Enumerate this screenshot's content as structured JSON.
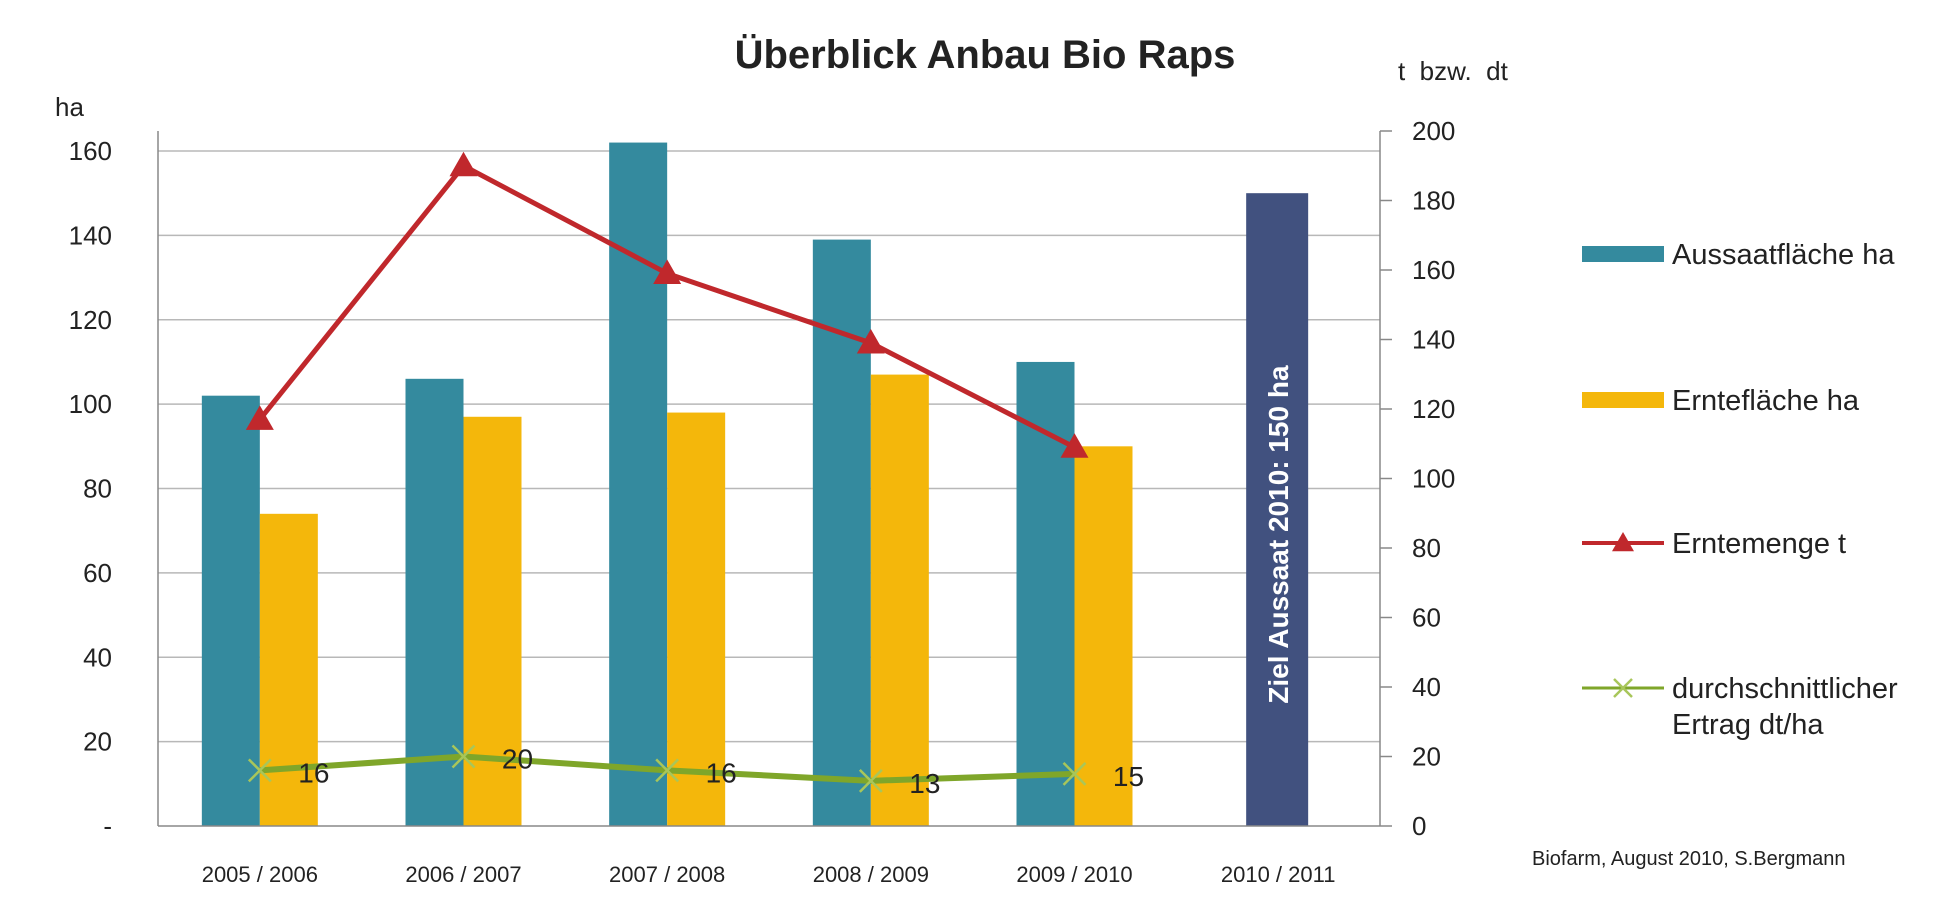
{
  "chart_data": {
    "type": "bar",
    "title": "Überblick Anbau Bio Raps",
    "left_axis": {
      "unit_label": "ha",
      "range": [
        0,
        160
      ],
      "ticks": [
        {
          "value": 0,
          "label": "-"
        },
        {
          "value": 20,
          "label": "20"
        },
        {
          "value": 40,
          "label": "40"
        },
        {
          "value": 60,
          "label": "60"
        },
        {
          "value": 80,
          "label": "80"
        },
        {
          "value": 100,
          "label": "100"
        },
        {
          "value": 120,
          "label": "120"
        },
        {
          "value": 140,
          "label": "140"
        },
        {
          "value": 160,
          "label": "160"
        }
      ]
    },
    "right_axis": {
      "unit_label": "t  bzw.  dt",
      "range": [
        0,
        200
      ],
      "ticks": [
        {
          "value": 0,
          "label": "0"
        },
        {
          "value": 20,
          "label": "20"
        },
        {
          "value": 40,
          "label": "40"
        },
        {
          "value": 60,
          "label": "60"
        },
        {
          "value": 80,
          "label": "80"
        },
        {
          "value": 100,
          "label": "100"
        },
        {
          "value": 120,
          "label": "120"
        },
        {
          "value": 140,
          "label": "140"
        },
        {
          "value": 160,
          "label": "160"
        },
        {
          "value": 180,
          "label": "180"
        },
        {
          "value": 200,
          "label": "200"
        }
      ]
    },
    "categories": [
      "2005 / 2006",
      "2006 / 2007",
      "2007 / 2008",
      "2008 / 2009",
      "2009 / 2010",
      "2010 / 2011"
    ],
    "grid": "horizontal",
    "legend_position": "right",
    "series": [
      {
        "name": "Aussaatfläche ha",
        "type": "bar",
        "axis": "left",
        "color": "#348a9e",
        "values": [
          102,
          106,
          162,
          139,
          110,
          null
        ]
      },
      {
        "name": "Erntefläche ha",
        "type": "bar",
        "axis": "left",
        "color": "#f4b70b",
        "values": [
          74,
          97,
          98,
          107,
          90,
          null
        ]
      },
      {
        "name": "Erntemenge t",
        "type": "line",
        "marker": "triangle",
        "axis": "right",
        "color": "#c0282c",
        "values": [
          117,
          190,
          159,
          139,
          109,
          null
        ]
      },
      {
        "name": "durchschnittlicher Ertrag dt/ha",
        "type": "line",
        "marker": "x",
        "axis": "right",
        "color": "#7fa62a",
        "values": [
          16,
          20,
          16,
          13,
          15,
          null
        ],
        "data_labels": [
          "16",
          "20",
          "16",
          "13",
          "15"
        ]
      }
    ],
    "target_bar": {
      "category": "2010 / 2011",
      "value": 150,
      "axis": "left",
      "color": "#41517f",
      "label": "Ziel Aussaat 2010: 150 ha"
    },
    "source_note": "Biofarm, August 2010, S.Bergmann"
  }
}
